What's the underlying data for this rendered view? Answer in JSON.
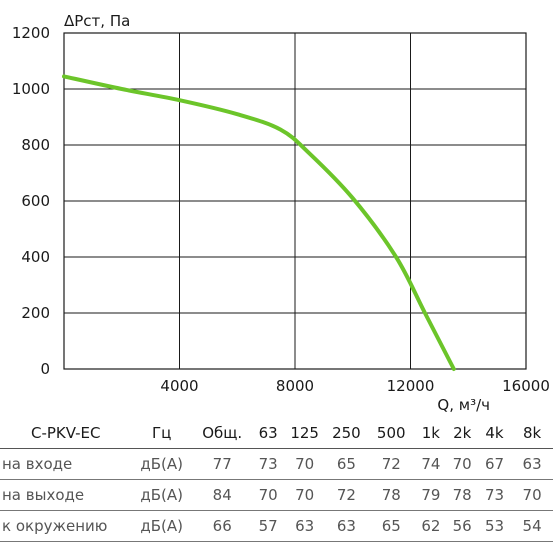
{
  "chart_data": {
    "type": "line",
    "xlabel": "Q, м³/ч",
    "ylabel": "ΔPст, Па",
    "xlim": [
      0,
      16000
    ],
    "ylim": [
      0,
      1200
    ],
    "xticks": [
      "4000",
      "8000",
      "12000",
      "16000"
    ],
    "yticks": [
      "0",
      "200",
      "400",
      "600",
      "800",
      "1000",
      "1200"
    ],
    "grid": true,
    "series": [
      {
        "color": "#6cc52a",
        "x": [
          0,
          2000,
          4000,
          6000,
          7500,
          8500,
          10000,
          11500,
          12500,
          13500
        ],
        "y": [
          1045,
          1000,
          960,
          910,
          855,
          770,
          610,
          400,
          200,
          0
        ]
      }
    ]
  },
  "table": {
    "header": [
      "C-PKV-EC",
      "Гц",
      "Общ.",
      "63",
      "125",
      "250",
      "500",
      "1k",
      "2k",
      "4k",
      "8k"
    ],
    "rows": [
      {
        "label": "на входе",
        "unit": "дБ(А)",
        "values": [
          "77",
          "73",
          "70",
          "65",
          "72",
          "74",
          "70",
          "67",
          "63"
        ]
      },
      {
        "label": "на выходе",
        "unit": "дБ(А)",
        "values": [
          "84",
          "70",
          "70",
          "72",
          "78",
          "79",
          "78",
          "73",
          "70"
        ]
      },
      {
        "label": "к окружению",
        "unit": "дБ(А)",
        "values": [
          "66",
          "57",
          "63",
          "63",
          "65",
          "62",
          "56",
          "53",
          "54"
        ]
      }
    ]
  }
}
